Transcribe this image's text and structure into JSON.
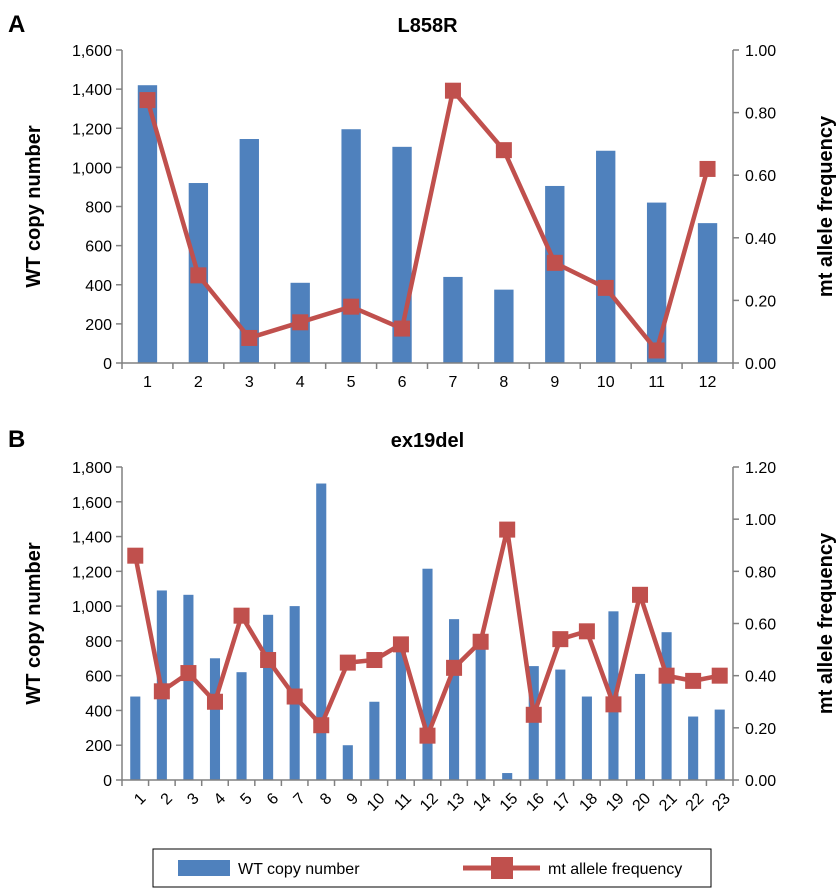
{
  "colors": {
    "bar": "#4f81bd",
    "line": "#c0504d",
    "axis": "#808080"
  },
  "legend": {
    "bar_label": "WT copy number",
    "line_label": "mt allele frequency"
  },
  "chart_data": [
    {
      "panel": "A",
      "type": "bar+line",
      "title": "L858R",
      "ylabel": "WT copy number",
      "y2label": "mt allele frequency",
      "ylim": [
        0,
        1600
      ],
      "yticks": [
        "0",
        "200",
        "400",
        "600",
        "800",
        "1,000",
        "1,200",
        "1,400",
        "1,600"
      ],
      "y2lim": [
        0,
        1.0
      ],
      "y2ticks": [
        "0.00",
        "0.20",
        "0.40",
        "0.60",
        "0.80",
        "1.00"
      ],
      "categories": [
        "1",
        "2",
        "3",
        "4",
        "5",
        "6",
        "7",
        "8",
        "9",
        "10",
        "11",
        "12"
      ],
      "xtick_rotate": false,
      "series": [
        {
          "name": "WT copy number",
          "type": "bar",
          "axis": "left",
          "values": [
            1420,
            920,
            1145,
            410,
            1195,
            1105,
            440,
            375,
            905,
            1085,
            820,
            715
          ]
        },
        {
          "name": "mt allele frequency",
          "type": "line",
          "axis": "right",
          "values": [
            0.84,
            0.28,
            0.08,
            0.13,
            0.18,
            0.11,
            0.87,
            0.68,
            0.32,
            0.24,
            0.04,
            0.62
          ]
        }
      ]
    },
    {
      "panel": "B",
      "type": "bar+line",
      "title": "ex19del",
      "ylabel": "WT copy number",
      "y2label": "mt allele frequency",
      "ylim": [
        0,
        1800
      ],
      "yticks": [
        "0",
        "200",
        "400",
        "600",
        "800",
        "1,000",
        "1,200",
        "1,400",
        "1,600",
        "1,800"
      ],
      "y2lim": [
        0,
        1.2
      ],
      "y2ticks": [
        "0.00",
        "0.20",
        "0.40",
        "0.60",
        "0.80",
        "1.00",
        "1.20"
      ],
      "categories": [
        "1",
        "2",
        "3",
        "4",
        "5",
        "6",
        "7",
        "8",
        "9",
        "10",
        "11",
        "12",
        "13",
        "14",
        "15",
        "16",
        "17",
        "18",
        "19",
        "20",
        "21",
        "22",
        "23"
      ],
      "xtick_rotate": true,
      "series": [
        {
          "name": "WT copy number",
          "type": "bar",
          "axis": "left",
          "values": [
            480,
            1090,
            1065,
            700,
            620,
            950,
            1000,
            1705,
            200,
            450,
            800,
            1215,
            925,
            790,
            40,
            655,
            635,
            480,
            970,
            610,
            850,
            365,
            405
          ]
        },
        {
          "name": "mt allele frequency",
          "type": "line",
          "axis": "right",
          "values": [
            0.86,
            0.34,
            0.41,
            0.3,
            0.63,
            0.46,
            0.32,
            0.21,
            0.45,
            0.46,
            0.52,
            0.17,
            0.43,
            0.53,
            0.96,
            0.25,
            0.54,
            0.57,
            0.29,
            0.71,
            0.4,
            0.38,
            0.4
          ]
        }
      ]
    }
  ]
}
